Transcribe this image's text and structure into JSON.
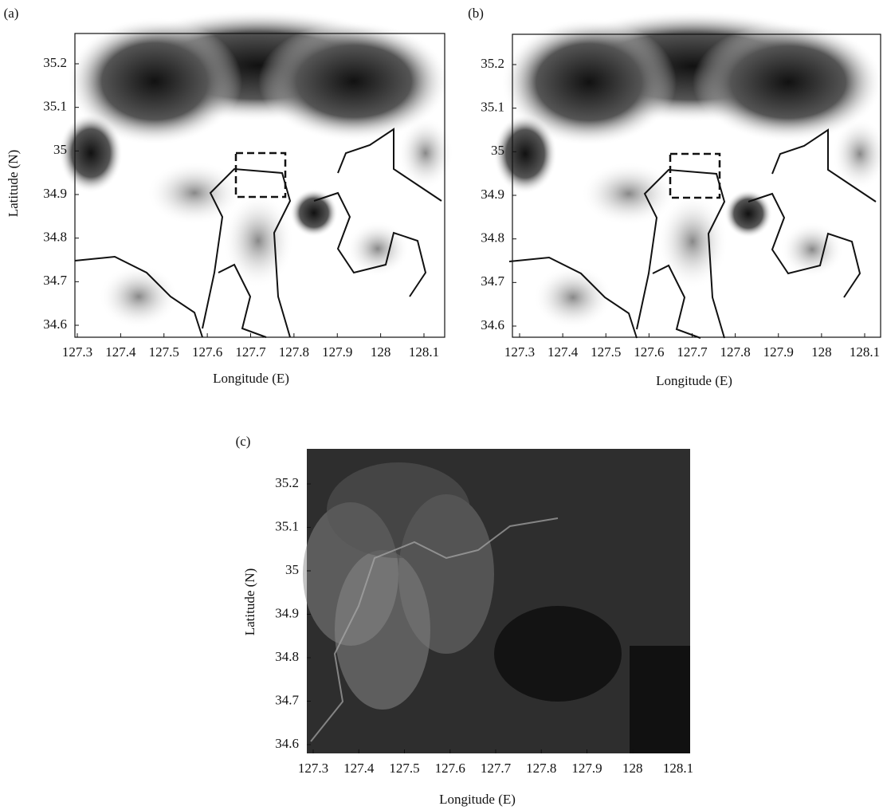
{
  "panels": [
    {
      "label": "(a)",
      "xlabel": "Longitude (E)",
      "ylabel": "Latitude (N)",
      "xticks": [
        127.3,
        127.4,
        127.5,
        127.6,
        127.7,
        127.8,
        127.9,
        128,
        128.1
      ],
      "yticks": [
        35.2,
        35.1,
        35,
        34.9,
        34.8,
        34.7,
        34.6
      ]
    },
    {
      "label": "(b)",
      "xlabel": "Longitude (E)",
      "xticks": [
        127.3,
        127.4,
        127.5,
        127.6,
        127.7,
        127.8,
        127.9,
        128,
        128.1
      ],
      "yticks": [
        35.2,
        35.1,
        35,
        34.9,
        34.8,
        34.7,
        34.6
      ]
    },
    {
      "label": "(c)",
      "xlabel": "Longitude (E)",
      "ylabel": "Latitude (N)",
      "xticks": [
        127.3,
        127.4,
        127.5,
        127.6,
        127.7,
        127.8,
        127.9,
        128,
        128.1
      ],
      "yticks": [
        35.2,
        35.1,
        35,
        34.9,
        34.8,
        34.7,
        34.6
      ]
    }
  ]
}
